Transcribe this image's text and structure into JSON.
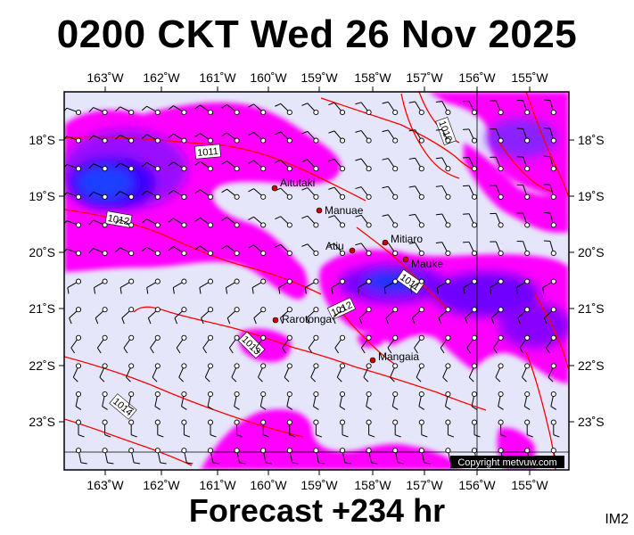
{
  "title": "0200 CKT Wed 26 Nov 2025",
  "footer": "Forecast +234 hr",
  "image_tag": "IM2",
  "copyright": "Copyright metvuw.com",
  "lon_ticks": [
    "163˚W",
    "162˚W",
    "161˚W",
    "160˚W",
    "159˚W",
    "158˚W",
    "157˚W",
    "156˚W",
    "155˚W"
  ],
  "lat_ticks": [
    "18˚S",
    "19˚S",
    "20˚S",
    "21˚S",
    "22˚S",
    "23˚S"
  ],
  "places": [
    {
      "name": "Aitutaki"
    },
    {
      "name": "Manuae"
    },
    {
      "name": "Mitiaro"
    },
    {
      "name": "Atiu"
    },
    {
      "name": "Mauke"
    },
    {
      "name": "Rarotonga"
    },
    {
      "name": "Mangaia"
    }
  ],
  "isobars": [
    "1011",
    "1012",
    "1013",
    "1014",
    "1010",
    "1011",
    "1012"
  ],
  "colors": {
    "background": "#e6e6fa",
    "magenta": "#ff00ff",
    "violet": "#b000ff",
    "blue": "#6a00ff",
    "deep_blue": "#2020ff",
    "isobar": "#ff0000",
    "town": "#cc0000"
  }
}
